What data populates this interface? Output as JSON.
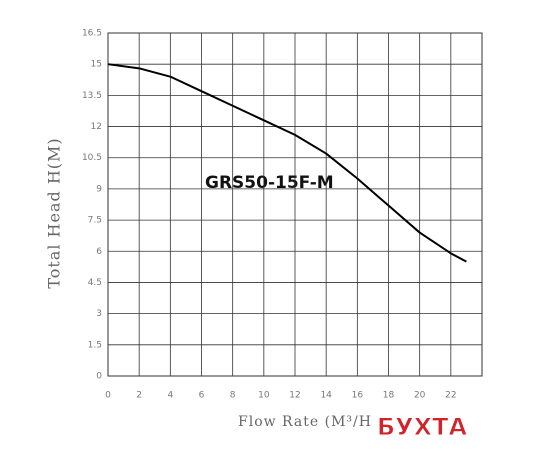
{
  "chart_data": {
    "type": "line",
    "annotation": "GRS50-15F-M",
    "xlabel": "Flow Rate (M³/H",
    "ylabel": "Total Head H(M)",
    "watermark": "БУХТА",
    "x": [
      0,
      2,
      4,
      6,
      8,
      10,
      12,
      14,
      16,
      18,
      20,
      22,
      23
    ],
    "series": [
      {
        "color": "#000000",
        "values": [
          15.0,
          14.8,
          14.4,
          13.7,
          13.0,
          12.3,
          11.6,
          10.7,
          9.5,
          8.2,
          6.9,
          5.9,
          5.5
        ]
      }
    ],
    "xlim": [
      0,
      24
    ],
    "xticks": [
      0,
      2,
      4,
      6,
      8,
      10,
      12,
      14,
      16,
      18,
      20,
      22
    ],
    "ylim": [
      0,
      16.5
    ],
    "yticks": [
      0,
      1.5,
      3,
      4.5,
      6,
      7.5,
      9,
      10.5,
      12,
      13.5,
      15,
      16.5
    ],
    "grid": true
  }
}
